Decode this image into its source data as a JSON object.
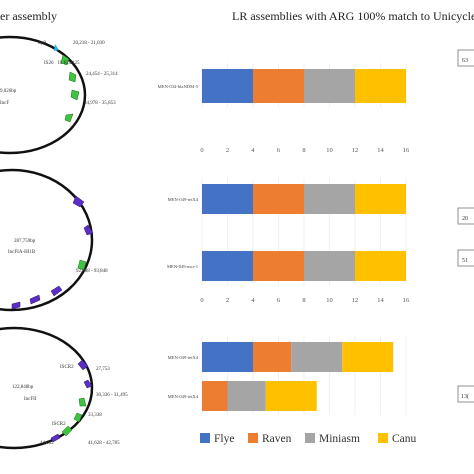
{
  "header": {
    "left_title": "er assembly",
    "right_title": "LR assemblies with ARG 100% match to Unicycler"
  },
  "plasmids": [
    {
      "size": "9,026bp",
      "inc": "IncF",
      "labels": [
        "trp9",
        "IS26",
        "IS Kba125"
      ],
      "ranges": [
        "20,218 - 21,030",
        "24,454 - 25,314",
        "34,978 - 35,853"
      ]
    },
    {
      "size": "287,759bp",
      "inc": "IncFIA-HI1B",
      "ranges": [
        "92,988 - 93,848"
      ]
    },
    {
      "size": "122,848bp",
      "inc": "IncFII",
      "labels": [
        "ISCR2",
        "ISCR2"
      ],
      "ranges": [
        "27,753",
        "30,336 - 31,495",
        "33,338",
        "41,628 - 42,785",
        "44,632"
      ]
    }
  ],
  "side_boxes": [
    "63",
    "20",
    "51",
    "13("
  ],
  "chart_data": [
    {
      "type": "bar",
      "orientation": "horizontal",
      "stacked": true,
      "categories": [
        "MEN-034-blaNDM-5"
      ],
      "series": [
        {
          "name": "Flye",
          "values": [
            4
          ]
        },
        {
          "name": "Raven",
          "values": [
            4
          ]
        },
        {
          "name": "Miniasm",
          "values": [
            4
          ]
        },
        {
          "name": "Canu",
          "values": [
            4
          ]
        }
      ],
      "xticks": [
        "0",
        "2",
        "4",
        "6",
        "8",
        "10",
        "12",
        "14",
        "16"
      ],
      "xlim": [
        0,
        16
      ]
    },
    {
      "type": "bar",
      "orientation": "horizontal",
      "stacked": true,
      "categories": [
        "MEN-049-tetX4",
        "MEN-049-mcr-1"
      ],
      "series": [
        {
          "name": "Flye",
          "values": [
            4,
            4
          ]
        },
        {
          "name": "Raven",
          "values": [
            4,
            4
          ]
        },
        {
          "name": "Miniasm",
          "values": [
            4,
            4
          ]
        },
        {
          "name": "Canu",
          "values": [
            4,
            4
          ]
        }
      ],
      "xticks": [
        "0",
        "2",
        "4",
        "6",
        "8",
        "10",
        "12",
        "14",
        "16"
      ],
      "xlim": [
        0,
        16
      ]
    },
    {
      "type": "bar",
      "orientation": "horizontal",
      "stacked": true,
      "categories": [
        "MEN-049-tetX4",
        "MEN-049-tetX4"
      ],
      "series": [
        {
          "name": "Flye",
          "values": [
            4,
            0
          ]
        },
        {
          "name": "Raven",
          "values": [
            3,
            2
          ]
        },
        {
          "name": "Miniasm",
          "values": [
            4,
            3
          ]
        },
        {
          "name": "Canu",
          "values": [
            4,
            4
          ]
        }
      ],
      "xticks": [],
      "xlim": [
        0,
        16
      ]
    }
  ],
  "legend": [
    {
      "name": "Flye",
      "color": "#4472c4"
    },
    {
      "name": "Raven",
      "color": "#ed7d31"
    },
    {
      "name": "Miniasm",
      "color": "#a5a5a5"
    },
    {
      "name": "Canu",
      "color": "#ffc000"
    }
  ]
}
